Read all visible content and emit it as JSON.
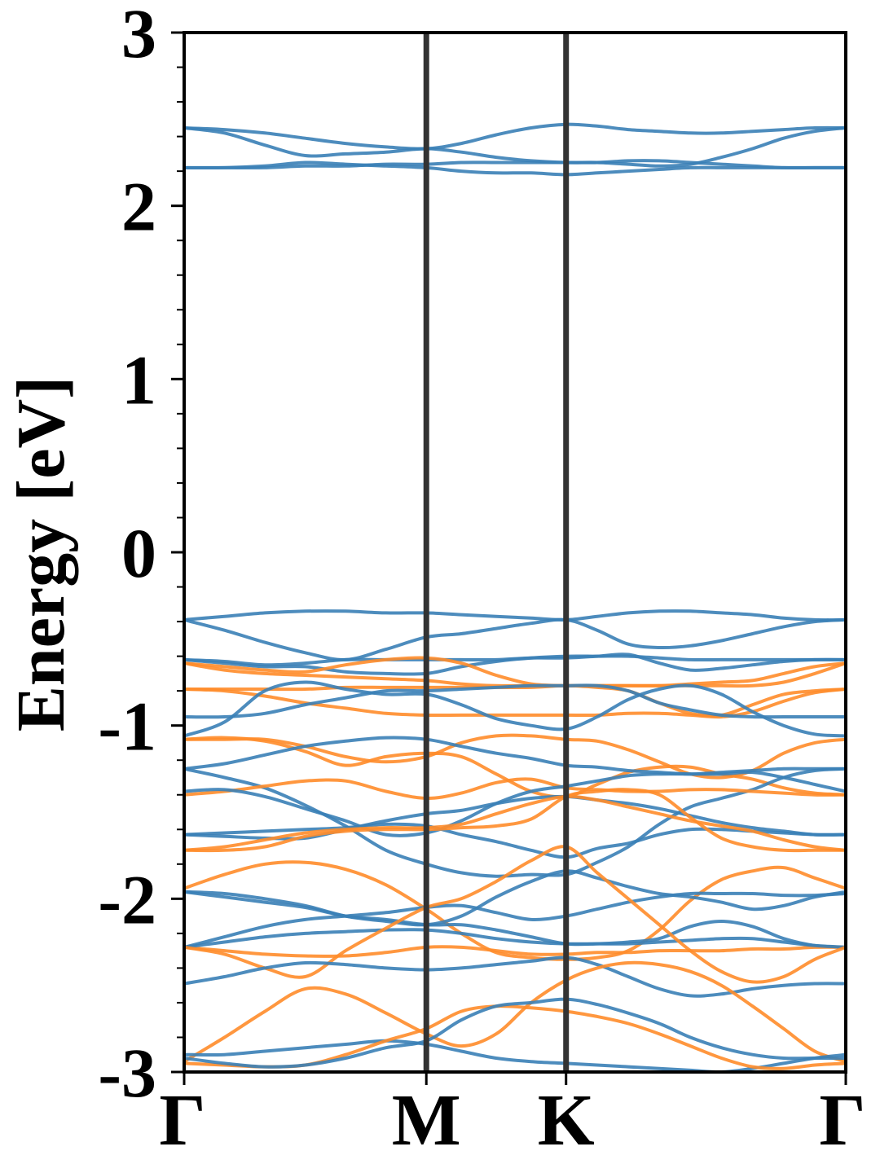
{
  "chart_data": {
    "type": "line",
    "title": "",
    "xlabel": "",
    "ylabel": "Energy [eV]",
    "ylim": [
      -3,
      3
    ],
    "y_ticks": [
      "3",
      "2",
      "1",
      "0",
      "-1",
      "-2",
      "-3"
    ],
    "x_ticks": [
      {
        "label": "Γ",
        "x": 0.0
      },
      {
        "label": "M",
        "x": 1.0
      },
      {
        "label": "K",
        "x": 1.577
      },
      {
        "label": "Γ",
        "x": 2.732
      }
    ],
    "grid": false,
    "legend": "none",
    "colors": {
      "conduction": "#3a80b6",
      "valence_blue": "#3a80b6",
      "valence_orange": "#ff8c2a",
      "kline": "#333333"
    },
    "series": [
      {
        "color": "#3a80b6",
        "values": [
          2.45,
          2.44,
          2.42,
          2.39,
          2.36,
          2.34,
          2.33,
          2.36,
          2.41,
          2.45,
          2.47,
          2.46,
          2.44,
          2.43,
          2.42,
          2.42,
          2.43,
          2.44,
          2.45,
          2.45
        ]
      },
      {
        "color": "#3a80b6",
        "values": [
          2.45,
          2.42,
          2.35,
          2.29,
          2.3,
          2.31,
          2.33,
          2.31,
          2.28,
          2.26,
          2.25,
          2.25,
          2.24,
          2.23,
          2.24,
          2.28,
          2.33,
          2.39,
          2.43,
          2.45
        ]
      },
      {
        "color": "#3a80b6",
        "values": [
          2.22,
          2.22,
          2.23,
          2.25,
          2.24,
          2.23,
          2.22,
          2.2,
          2.19,
          2.19,
          2.18,
          2.19,
          2.2,
          2.21,
          2.22,
          2.22,
          2.22,
          2.22,
          2.22,
          2.22
        ]
      },
      {
        "color": "#3a80b6",
        "values": [
          2.22,
          2.22,
          2.22,
          2.23,
          2.23,
          2.24,
          2.24,
          2.25,
          2.25,
          2.25,
          2.25,
          2.25,
          2.26,
          2.26,
          2.25,
          2.24,
          2.23,
          2.22,
          2.22,
          2.22
        ]
      },
      {
        "color": "#3a80b6",
        "values": [
          -0.39,
          -0.37,
          -0.35,
          -0.34,
          -0.34,
          -0.35,
          -0.35,
          -0.36,
          -0.37,
          -0.38,
          -0.39,
          -0.37,
          -0.35,
          -0.34,
          -0.34,
          -0.35,
          -0.36,
          -0.38,
          -0.39,
          -0.39
        ]
      },
      {
        "color": "#3a80b6",
        "values": [
          -0.39,
          -0.45,
          -0.52,
          -0.58,
          -0.62,
          -0.56,
          -0.49,
          -0.47,
          -0.44,
          -0.41,
          -0.39,
          -0.45,
          -0.53,
          -0.55,
          -0.54,
          -0.51,
          -0.47,
          -0.43,
          -0.4,
          -0.39
        ]
      },
      {
        "color": "#3a80b6",
        "values": [
          -0.62,
          -0.63,
          -0.65,
          -0.64,
          -0.62,
          -0.62,
          -0.62,
          -0.62,
          -0.62,
          -0.61,
          -0.61,
          -0.6,
          -0.59,
          -0.64,
          -0.68,
          -0.67,
          -0.65,
          -0.63,
          -0.62,
          -0.62
        ]
      },
      {
        "color": "#3a80b6",
        "values": [
          -0.62,
          -0.64,
          -0.66,
          -0.66,
          -0.69,
          -0.7,
          -0.7,
          -0.66,
          -0.63,
          -0.61,
          -0.6,
          -0.6,
          -0.6,
          -0.61,
          -0.62,
          -0.62,
          -0.62,
          -0.62,
          -0.62,
          -0.62
        ]
      },
      {
        "color": "#ff8c2a",
        "values": [
          -0.64,
          -0.66,
          -0.68,
          -0.69,
          -0.65,
          -0.62,
          -0.61,
          -0.64,
          -0.71,
          -0.76,
          -0.77,
          -0.77,
          -0.77,
          -0.77,
          -0.76,
          -0.75,
          -0.74,
          -0.7,
          -0.66,
          -0.64
        ]
      },
      {
        "color": "#ff8c2a",
        "values": [
          -0.64,
          -0.68,
          -0.7,
          -0.71,
          -0.72,
          -0.73,
          -0.74,
          -0.76,
          -0.77,
          -0.77,
          -0.77,
          -0.77,
          -0.77,
          -0.77,
          -0.77,
          -0.77,
          -0.77,
          -0.75,
          -0.7,
          -0.64
        ]
      },
      {
        "color": "#ff8c2a",
        "values": [
          -0.79,
          -0.79,
          -0.79,
          -0.79,
          -0.78,
          -0.78,
          -0.78,
          -0.78,
          -0.78,
          -0.78,
          -0.77,
          -0.78,
          -0.8,
          -0.87,
          -0.93,
          -0.94,
          -0.88,
          -0.82,
          -0.8,
          -0.79
        ]
      },
      {
        "color": "#ff8c2a",
        "values": [
          -0.79,
          -0.8,
          -0.83,
          -0.87,
          -0.9,
          -0.93,
          -0.94,
          -0.94,
          -0.94,
          -0.94,
          -0.94,
          -0.94,
          -0.93,
          -0.93,
          -0.94,
          -0.95,
          -0.92,
          -0.86,
          -0.81,
          -0.79
        ]
      },
      {
        "color": "#3a80b6",
        "values": [
          -0.95,
          -0.95,
          -0.93,
          -0.88,
          -0.84,
          -0.8,
          -0.8,
          -0.79,
          -0.78,
          -0.77,
          -0.77,
          -0.77,
          -0.8,
          -0.87,
          -0.91,
          -0.94,
          -0.95,
          -0.95,
          -0.95,
          -0.95
        ]
      },
      {
        "color": "#3a80b6",
        "values": [
          -1.06,
          -0.98,
          -0.8,
          -0.75,
          -0.79,
          -0.82,
          -0.82,
          -0.88,
          -0.96,
          -1.0,
          -1.02,
          -0.95,
          -0.85,
          -0.79,
          -0.77,
          -0.82,
          -0.92,
          -1.0,
          -1.05,
          -1.06
        ]
      },
      {
        "color": "#ff8c2a",
        "values": [
          -1.08,
          -1.07,
          -1.09,
          -1.15,
          -1.23,
          -1.18,
          -1.16,
          -1.18,
          -1.28,
          -1.38,
          -1.41,
          -1.34,
          -1.27,
          -1.24,
          -1.24,
          -1.28,
          -1.31,
          -1.36,
          -1.39,
          -1.4
        ]
      },
      {
        "color": "#ff8c2a",
        "values": [
          -1.08,
          -1.08,
          -1.08,
          -1.12,
          -1.18,
          -1.21,
          -1.18,
          -1.1,
          -1.06,
          -1.06,
          -1.08,
          -1.09,
          -1.14,
          -1.21,
          -1.28,
          -1.3,
          -1.26,
          -1.16,
          -1.1,
          -1.08
        ]
      },
      {
        "color": "#3a80b6",
        "values": [
          -1.25,
          -1.22,
          -1.17,
          -1.12,
          -1.09,
          -1.07,
          -1.08,
          -1.12,
          -1.16,
          -1.19,
          -1.23,
          -1.24,
          -1.26,
          -1.27,
          -1.28,
          -1.27,
          -1.26,
          -1.25,
          -1.25,
          -1.25
        ]
      },
      {
        "color": "#3a80b6",
        "values": [
          -1.25,
          -1.3,
          -1.36,
          -1.46,
          -1.58,
          -1.72,
          -1.8,
          -1.85,
          -1.87,
          -1.86,
          -1.86,
          -1.79,
          -1.7,
          -1.57,
          -1.47,
          -1.42,
          -1.37,
          -1.3,
          -1.26,
          -1.25
        ]
      },
      {
        "color": "#ff8c2a",
        "values": [
          -1.4,
          -1.38,
          -1.35,
          -1.32,
          -1.32,
          -1.38,
          -1.42,
          -1.39,
          -1.33,
          -1.31,
          -1.36,
          -1.37,
          -1.38,
          -1.38,
          -1.37,
          -1.37,
          -1.38,
          -1.39,
          -1.4,
          -1.4
        ]
      },
      {
        "color": "#3a80b6",
        "values": [
          -1.38,
          -1.37,
          -1.41,
          -1.48,
          -1.55,
          -1.63,
          -1.62,
          -1.55,
          -1.45,
          -1.38,
          -1.35,
          -1.32,
          -1.29,
          -1.28,
          -1.28,
          -1.28,
          -1.27,
          -1.3,
          -1.34,
          -1.38
        ]
      },
      {
        "color": "#3a80b6",
        "values": [
          -1.63,
          -1.64,
          -1.65,
          -1.65,
          -1.6,
          -1.55,
          -1.51,
          -1.49,
          -1.45,
          -1.42,
          -1.41,
          -1.43,
          -1.45,
          -1.48,
          -1.52,
          -1.56,
          -1.59,
          -1.61,
          -1.63,
          -1.63
        ]
      },
      {
        "color": "#3a80b6",
        "values": [
          -1.63,
          -1.62,
          -1.61,
          -1.6,
          -1.59,
          -1.57,
          -1.58,
          -1.63,
          -1.67,
          -1.72,
          -1.76,
          -1.71,
          -1.68,
          -1.63,
          -1.6,
          -1.6,
          -1.61,
          -1.62,
          -1.63,
          -1.63
        ]
      },
      {
        "color": "#ff8c2a",
        "values": [
          -1.72,
          -1.7,
          -1.66,
          -1.62,
          -1.6,
          -1.59,
          -1.59,
          -1.57,
          -1.51,
          -1.45,
          -1.41,
          -1.43,
          -1.47,
          -1.51,
          -1.55,
          -1.58,
          -1.61,
          -1.66,
          -1.7,
          -1.72
        ]
      },
      {
        "color": "#ff8c2a",
        "values": [
          -1.72,
          -1.72,
          -1.7,
          -1.64,
          -1.61,
          -1.6,
          -1.6,
          -1.59,
          -1.58,
          -1.54,
          -1.41,
          -1.38,
          -1.37,
          -1.4,
          -1.53,
          -1.65,
          -1.7,
          -1.72,
          -1.72,
          -1.72
        ]
      },
      {
        "color": "#ff8c2a",
        "values": [
          -1.94,
          -1.86,
          -1.8,
          -1.79,
          -1.83,
          -1.92,
          -2.06,
          -2.2,
          -2.31,
          -2.34,
          -2.35,
          -2.34,
          -2.3,
          -2.18,
          -2.01,
          -1.89,
          -1.84,
          -1.82,
          -1.88,
          -1.94
        ]
      },
      {
        "color": "#3a80b6",
        "values": [
          -1.96,
          -1.97,
          -2.0,
          -2.04,
          -2.1,
          -2.13,
          -2.15,
          -2.1,
          -1.99,
          -1.9,
          -1.84,
          -1.88,
          -1.93,
          -1.97,
          -1.99,
          -2.02,
          -2.06,
          -2.04,
          -1.99,
          -1.96
        ]
      },
      {
        "color": "#3a80b6",
        "values": [
          -1.96,
          -1.99,
          -2.02,
          -2.05,
          -2.1,
          -2.12,
          -2.15,
          -2.15,
          -2.18,
          -2.22,
          -2.26,
          -2.26,
          -2.25,
          -2.23,
          -2.16,
          -2.13,
          -2.16,
          -2.23,
          -2.27,
          -2.28
        ]
      },
      {
        "color": "#3a80b6",
        "values": [
          -2.28,
          -2.22,
          -2.16,
          -2.12,
          -2.1,
          -2.08,
          -2.05,
          -2.04,
          -2.08,
          -2.12,
          -2.1,
          -2.06,
          -2.02,
          -1.99,
          -1.97,
          -1.97,
          -1.97,
          -1.98,
          -1.98,
          -1.97
        ]
      },
      {
        "color": "#ff8c2a",
        "values": [
          -2.28,
          -2.3,
          -2.32,
          -2.33,
          -2.33,
          -2.31,
          -2.28,
          -2.28,
          -2.3,
          -2.32,
          -2.32,
          -2.31,
          -2.31,
          -2.3,
          -2.3,
          -2.3,
          -2.29,
          -2.29,
          -2.28,
          -2.28
        ]
      },
      {
        "color": "#3a80b6",
        "values": [
          -2.28,
          -2.25,
          -2.22,
          -2.2,
          -2.19,
          -2.18,
          -2.18,
          -2.2,
          -2.23,
          -2.25,
          -2.26,
          -2.26,
          -2.26,
          -2.25,
          -2.24,
          -2.23,
          -2.23,
          -2.25,
          -2.27,
          -2.28
        ]
      },
      {
        "color": "#ff8c2a",
        "values": [
          -2.28,
          -2.32,
          -2.4,
          -2.45,
          -2.3,
          -2.17,
          -2.05,
          -2.0,
          -1.9,
          -1.78,
          -1.7,
          -1.85,
          -2.0,
          -2.15,
          -2.3,
          -2.42,
          -2.48,
          -2.45,
          -2.35,
          -2.28
        ]
      },
      {
        "color": "#3a80b6",
        "values": [
          -2.49,
          -2.45,
          -2.4,
          -2.37,
          -2.38,
          -2.4,
          -2.41,
          -2.4,
          -2.38,
          -2.36,
          -2.34,
          -2.38,
          -2.45,
          -2.52,
          -2.56,
          -2.55,
          -2.52,
          -2.5,
          -2.49,
          -2.49
        ]
      },
      {
        "color": "#ff8c2a",
        "values": [
          -2.94,
          -2.8,
          -2.65,
          -2.52,
          -2.55,
          -2.66,
          -2.78,
          -2.85,
          -2.78,
          -2.6,
          -2.47,
          -2.4,
          -2.37,
          -2.38,
          -2.42,
          -2.5,
          -2.62,
          -2.75,
          -2.88,
          -2.94
        ]
      },
      {
        "color": "#3a80b6",
        "values": [
          -2.9,
          -2.9,
          -2.88,
          -2.86,
          -2.84,
          -2.82,
          -2.84,
          -2.88,
          -2.92,
          -2.94,
          -2.95,
          -2.96,
          -2.97,
          -2.98,
          -2.99,
          -3.0,
          -2.98,
          -2.95,
          -2.92,
          -2.9
        ]
      },
      {
        "color": "#ff8c2a",
        "values": [
          -2.95,
          -2.96,
          -2.97,
          -2.96,
          -2.9,
          -2.82,
          -2.75,
          -2.65,
          -2.62,
          -2.63,
          -2.65,
          -2.68,
          -2.72,
          -2.78,
          -2.85,
          -2.92,
          -2.97,
          -2.98,
          -2.96,
          -2.95
        ]
      },
      {
        "color": "#3a80b6",
        "values": [
          -2.92,
          -2.95,
          -2.97,
          -2.96,
          -2.92,
          -2.86,
          -2.82,
          -2.7,
          -2.62,
          -2.6,
          -2.58,
          -2.61,
          -2.66,
          -2.72,
          -2.8,
          -2.86,
          -2.9,
          -2.92,
          -2.92,
          -2.92
        ]
      }
    ]
  }
}
